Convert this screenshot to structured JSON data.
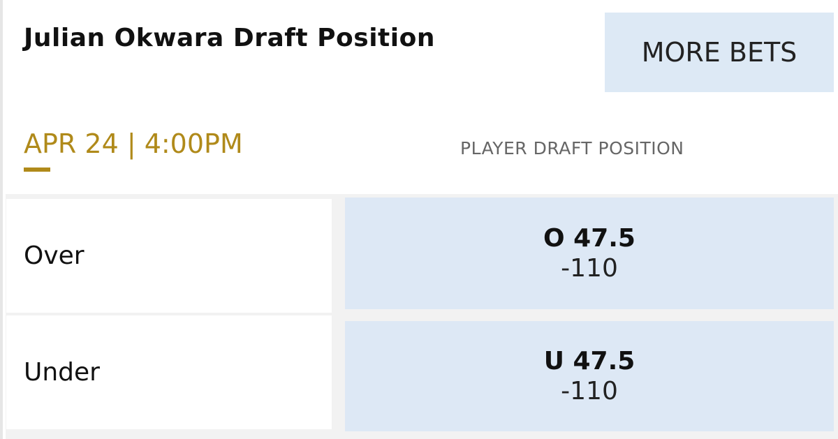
{
  "header": {
    "title": "Julian Okwara Draft Position",
    "more_bets_label": "MORE BETS"
  },
  "event": {
    "date_time": "APR 24 | 4:00PM",
    "market_label": "PLAYER DRAFT POSITION"
  },
  "colors": {
    "accent": "#b08a1a",
    "odds_bg": "#dde8f5"
  },
  "outcomes": [
    {
      "label": "Over",
      "line": "O 47.5",
      "price": "-110"
    },
    {
      "label": "Under",
      "line": "U 47.5",
      "price": "-110"
    }
  ]
}
